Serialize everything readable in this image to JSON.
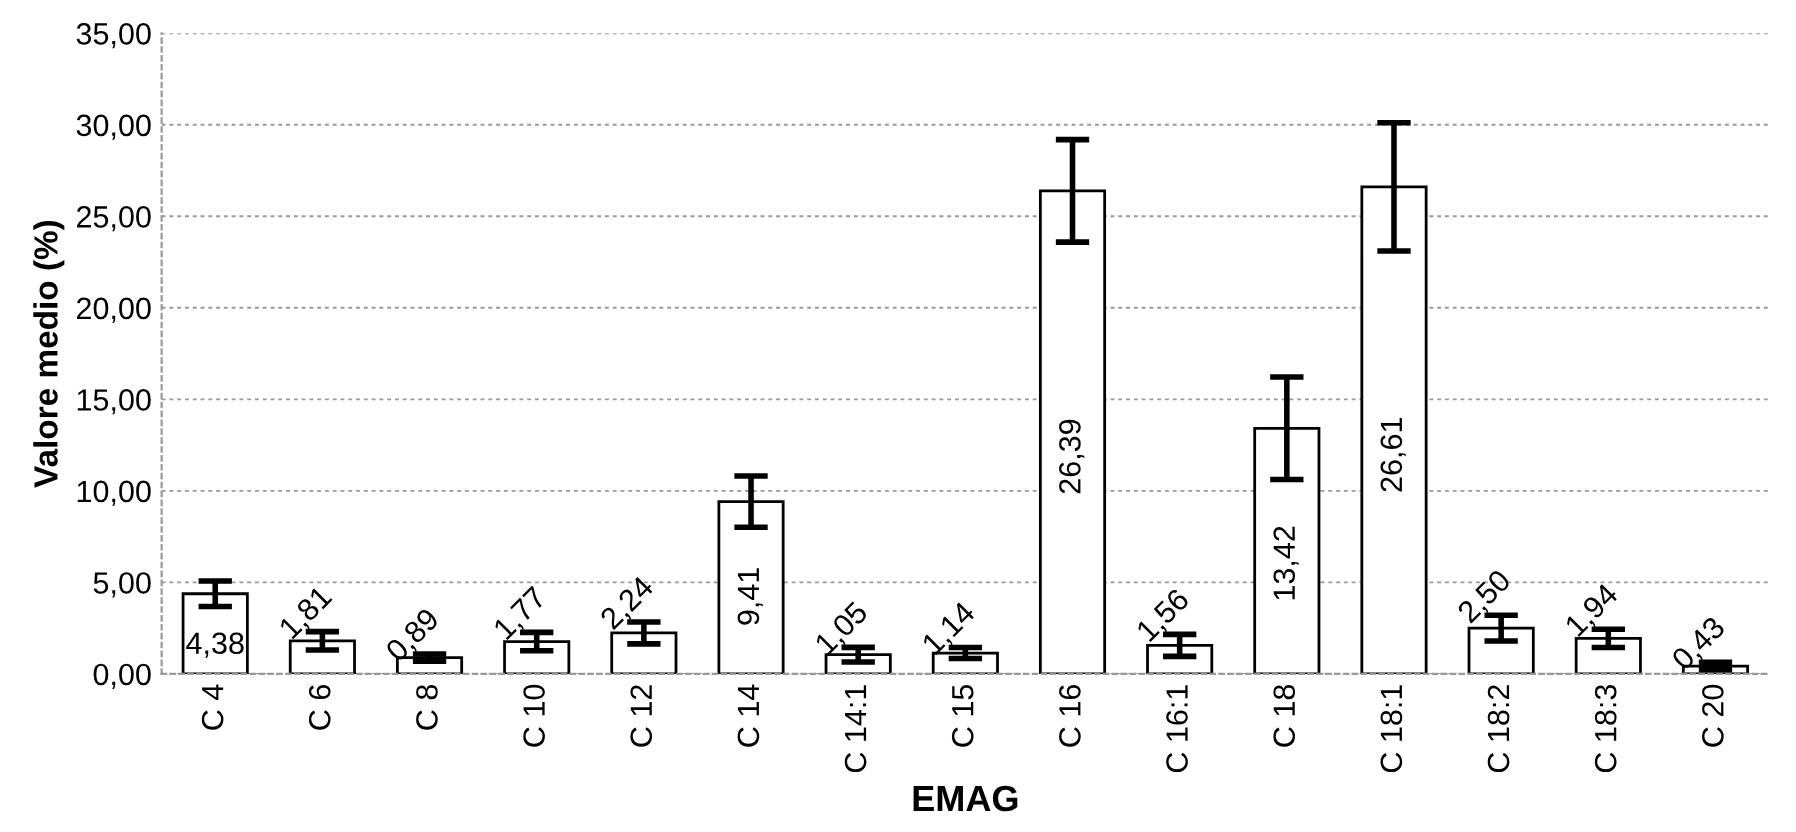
{
  "chart_data": {
    "type": "bar",
    "xlabel": "EMAG",
    "ylabel": "Valore medio (%)",
    "categories": [
      "C 4",
      "C 6",
      "C 8",
      "C 10",
      "C 12",
      "C 14",
      "C 14:1",
      "C 15",
      "C 16",
      "C 16:1",
      "C 18",
      "C 18:1",
      "C 18:2",
      "C 18:3",
      "C 20"
    ],
    "values": [
      4.38,
      1.81,
      0.89,
      1.77,
      2.24,
      9.41,
      1.05,
      1.14,
      26.39,
      1.56,
      13.42,
      26.61,
      2.5,
      1.94,
      0.43
    ],
    "errors": [
      0.7,
      0.5,
      0.2,
      0.5,
      0.6,
      1.4,
      0.4,
      0.3,
      2.8,
      0.6,
      2.8,
      3.5,
      0.7,
      0.5,
      0.2
    ],
    "value_labels": [
      "4,38",
      "1,81",
      "0,89",
      "1,77",
      "2,24",
      "9,41",
      "1,05",
      "1,14",
      "26,39",
      "1,56",
      "13,42",
      "26,61",
      "2,50",
      "1,94",
      "0,43"
    ],
    "color": "#ffffff",
    "ylim": [
      0,
      35
    ],
    "yticks": [
      {
        "value": 0,
        "label": "0,00"
      },
      {
        "value": 5,
        "label": "5,00"
      },
      {
        "value": 10,
        "label": "10,00"
      },
      {
        "value": 15,
        "label": "15,00"
      },
      {
        "value": 20,
        "label": "20,00"
      },
      {
        "value": 25,
        "label": "25,00"
      },
      {
        "value": 30,
        "label": "30,00"
      },
      {
        "value": 35,
        "label": "35,00"
      }
    ],
    "grid": "y"
  }
}
